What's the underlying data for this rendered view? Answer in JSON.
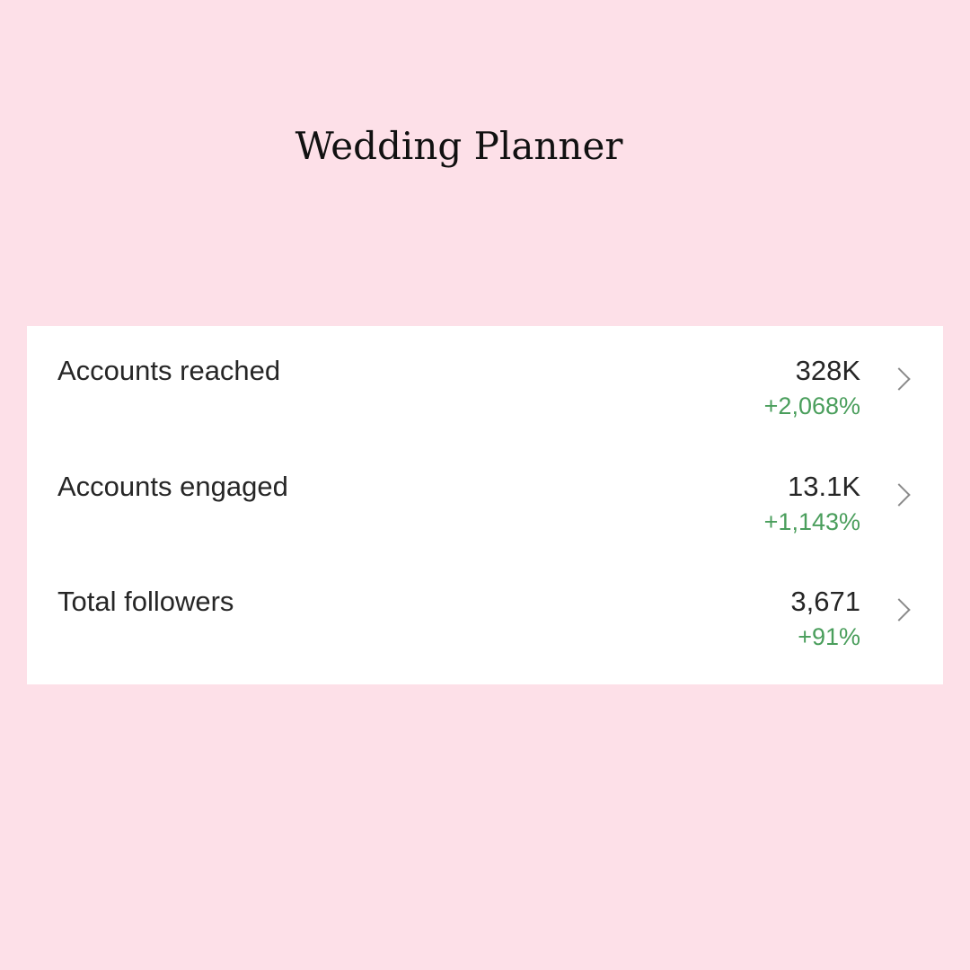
{
  "title": "Wedding Planner",
  "metrics": [
    {
      "label": "Accounts reached",
      "value": "328K",
      "change": "+2,068%"
    },
    {
      "label": "Accounts engaged",
      "value": "13.1K",
      "change": "+1,143%"
    },
    {
      "label": "Total followers",
      "value": "3,671",
      "change": "+91%"
    }
  ],
  "colors": {
    "background": "#fde0e8",
    "positive": "#4a9e5c"
  }
}
